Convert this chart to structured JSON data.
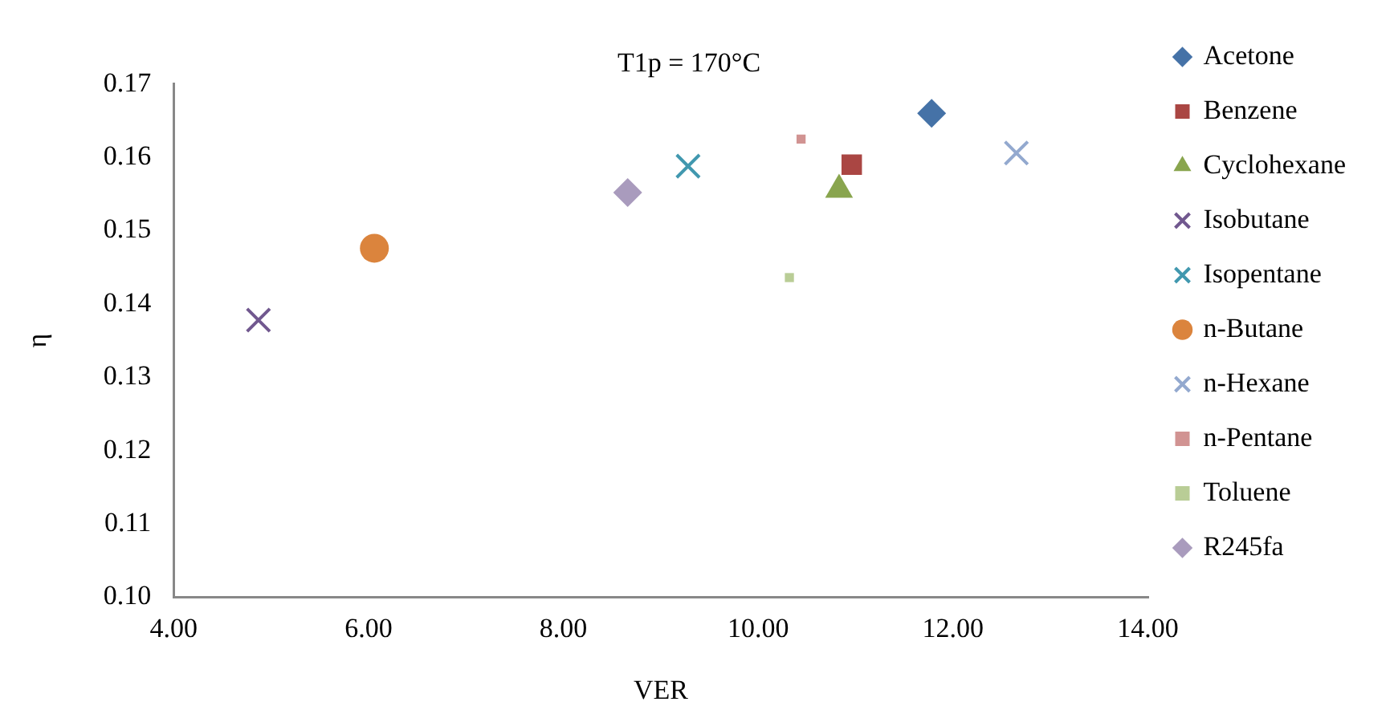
{
  "chart_data": {
    "type": "scatter",
    "title": "T1p = 170°C",
    "xlabel": "VER",
    "ylabel": "η",
    "xlim": [
      4,
      14
    ],
    "xticks": [
      {
        "value": 4,
        "label": "4.00"
      },
      {
        "value": 6,
        "label": "6.00"
      },
      {
        "value": 8,
        "label": "8.00"
      },
      {
        "value": 10,
        "label": "10.00"
      },
      {
        "value": 12,
        "label": "12.00"
      },
      {
        "value": 14,
        "label": "14.00"
      }
    ],
    "ylim": [
      0.1,
      0.17
    ],
    "yticks": [
      {
        "value": 0.1,
        "label": "0.10"
      },
      {
        "value": 0.11,
        "label": "0.11"
      },
      {
        "value": 0.12,
        "label": "0.12"
      },
      {
        "value": 0.13,
        "label": "0.13"
      },
      {
        "value": 0.14,
        "label": "0.14"
      },
      {
        "value": 0.15,
        "label": "0.15"
      },
      {
        "value": 0.16,
        "label": "0.16"
      },
      {
        "value": 0.17,
        "label": "0.17"
      }
    ],
    "grid": false,
    "legend": "right",
    "series": [
      {
        "name": "Acetone",
        "color": "#4572a7",
        "marker": "diamond",
        "x": [
          11.78
        ],
        "values": [
          0.166
        ]
      },
      {
        "name": "Benzene",
        "color": "#aa4643",
        "marker": "square",
        "x": [
          10.96
        ],
        "values": [
          0.159
        ]
      },
      {
        "name": "Cyclohexane",
        "color": "#89a54e",
        "marker": "triangle",
        "x": [
          10.83
        ],
        "values": [
          0.1556
        ]
      },
      {
        "name": "Isobutane",
        "color": "#71588f",
        "marker": "cross",
        "x": [
          4.87
        ],
        "values": [
          0.1378
        ]
      },
      {
        "name": "Isopentane",
        "color": "#4198af",
        "marker": "cross",
        "x": [
          9.28
        ],
        "values": [
          0.1588
        ]
      },
      {
        "name": "n-Butane",
        "color": "#db843d",
        "marker": "circle",
        "x": [
          6.06
        ],
        "values": [
          0.1476
        ]
      },
      {
        "name": "n-Hexane",
        "color": "#93a9cf",
        "marker": "cross",
        "x": [
          12.65
        ],
        "values": [
          0.1606
        ]
      },
      {
        "name": "n-Pentane",
        "color": "#d19392",
        "x": [
          10.44
        ],
        "values": [
          0.1625
        ]
      },
      {
        "name": "Toluene",
        "color": "#b9cd96",
        "x": [
          10.32
        ],
        "values": [
          0.1436
        ]
      },
      {
        "name": "R245fa",
        "color": "#a99bbd",
        "marker": "diamond",
        "x": [
          8.66
        ],
        "values": [
          0.1552
        ]
      }
    ]
  }
}
